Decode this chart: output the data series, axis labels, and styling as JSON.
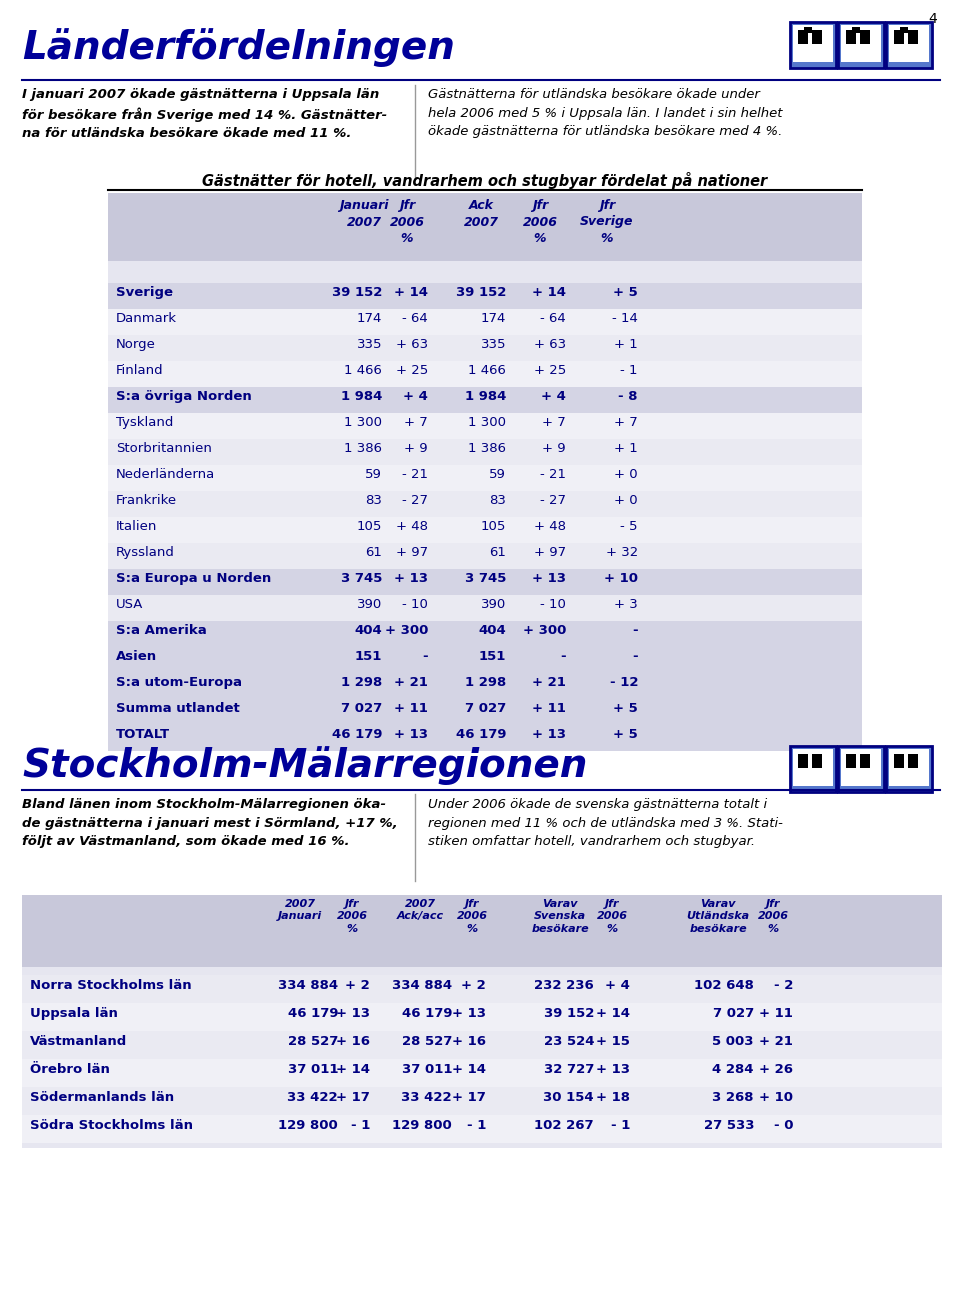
{
  "page_number": "4",
  "section1_title": "Länderfördelningen",
  "title_color": "#0000cc",
  "text_left1": "I januari 2007 ökade gästnätterna i Uppsala län\nför besökare från Sverige med 14 %. Gästnätter-\nna för utländska besökare ökade med 11 %.",
  "text_right1": "Gästnätterna för utländska besökare ökade under\nhela 2006 med 5 % i Uppsala län. I landet i sin helhet\nökade gästnätterna för utländska besökare med 4 %.",
  "table1_title": "Gästnätter för hotell, vandrarhem och stugbyar fördelat på nationer",
  "table1_headers": [
    "Januari\n2007",
    "Jfr\n2006\n%",
    "Ack\n2007",
    "Jfr\n2006\n%",
    "Jfr\nSverige\n%"
  ],
  "table1_rows": [
    [
      "Sverige",
      "39 152",
      "+ 14",
      "39 152",
      "+ 14",
      "+ 5",
      true
    ],
    [
      "Danmark",
      "174",
      "- 64",
      "174",
      "- 64",
      "- 14",
      false
    ],
    [
      "Norge",
      "335",
      "+ 63",
      "335",
      "+ 63",
      "+ 1",
      false
    ],
    [
      "Finland",
      "1 466",
      "+ 25",
      "1 466",
      "+ 25",
      "- 1",
      false
    ],
    [
      "S:a övriga Norden",
      "1 984",
      "+ 4",
      "1 984",
      "+ 4",
      "- 8",
      true
    ],
    [
      "Tyskland",
      "1 300",
      "+ 7",
      "1 300",
      "+ 7",
      "+ 7",
      false
    ],
    [
      "Storbritannien",
      "1 386",
      "+ 9",
      "1 386",
      "+ 9",
      "+ 1",
      false
    ],
    [
      "Nederländerna",
      "59",
      "- 21",
      "59",
      "- 21",
      "+ 0",
      false
    ],
    [
      "Frankrike",
      "83",
      "- 27",
      "83",
      "- 27",
      "+ 0",
      false
    ],
    [
      "Italien",
      "105",
      "+ 48",
      "105",
      "+ 48",
      "- 5",
      false
    ],
    [
      "Ryssland",
      "61",
      "+ 97",
      "61",
      "+ 97",
      "+ 32",
      false
    ],
    [
      "S:a Europa u Norden",
      "3 745",
      "+ 13",
      "3 745",
      "+ 13",
      "+ 10",
      true
    ],
    [
      "USA",
      "390",
      "- 10",
      "390",
      "- 10",
      "+ 3",
      false
    ],
    [
      "S:a Amerika",
      "404",
      "+ 300",
      "404",
      "+ 300",
      "-",
      true
    ],
    [
      "Asien",
      "151",
      "-",
      "151",
      "-",
      "-",
      true
    ],
    [
      "S:a utom-Europa",
      "1 298",
      "+ 21",
      "1 298",
      "+ 21",
      "- 12",
      true
    ],
    [
      "Summa utlandet",
      "7 027",
      "+ 11",
      "7 027",
      "+ 11",
      "+ 5",
      true
    ],
    [
      "TOTALT",
      "46 179",
      "+ 13",
      "46 179",
      "+ 13",
      "+ 5",
      true
    ]
  ],
  "section2_title": "Stockholm-Mälarregionen",
  "text_left2": "Bland länen inom Stockholm-Mälarregionen öka-\nde gästnätterna i januari mest i Sörmland, +17 %,\nföljt av Västmanland, som ökade med 16 %.",
  "text_right2": "Under 2006 ökade de svenska gästnätterna totalt i\nregionen med 11 % och de utländska med 3 %. Stati-\nstiken omfattar hotell, vandrarhem och stugbyar.",
  "table2_headers": [
    "2007\nJanuari",
    "Jfr\n2006\n%",
    "2007\nAck/acc",
    "Jfr\n2006\n%",
    "Varav\nSvenska\nbesökare",
    "Jfr\n2006\n%",
    "Varav\nUtländska\nbesökare",
    "Jfr\n2006\n%"
  ],
  "table2_rows": [
    [
      "Norra Stockholms län",
      "334 884",
      "+ 2",
      "334 884",
      "+ 2",
      "232 236",
      "+ 4",
      "102 648",
      "- 2"
    ],
    [
      "Uppsala län",
      "46 179",
      "+ 13",
      "46 179",
      "+ 13",
      "39 152",
      "+ 14",
      "7 027",
      "+ 11"
    ],
    [
      "Västmanland",
      "28 527",
      "+ 16",
      "28 527",
      "+ 16",
      "23 524",
      "+ 15",
      "5 003",
      "+ 21"
    ],
    [
      "Örebro län",
      "37 011",
      "+ 14",
      "37 011",
      "+ 14",
      "32 727",
      "+ 13",
      "4 284",
      "+ 26"
    ],
    [
      "Södermanlands län",
      "33 422",
      "+ 17",
      "33 422",
      "+ 17",
      "30 154",
      "+ 18",
      "3 268",
      "+ 10"
    ],
    [
      "Södra Stockholms län",
      "129 800",
      "- 1",
      "129 800",
      "- 1",
      "102 267",
      "- 1",
      "27 533",
      "- 0"
    ]
  ],
  "navy": "#000080",
  "blue_text": "#000099",
  "table_bg": "#e6e6f0",
  "header_bg": "#c8c8da",
  "bold_row_bg": "#d4d4e4",
  "light_row1": "#eaeaf2",
  "light_row2": "#f0f0f6"
}
